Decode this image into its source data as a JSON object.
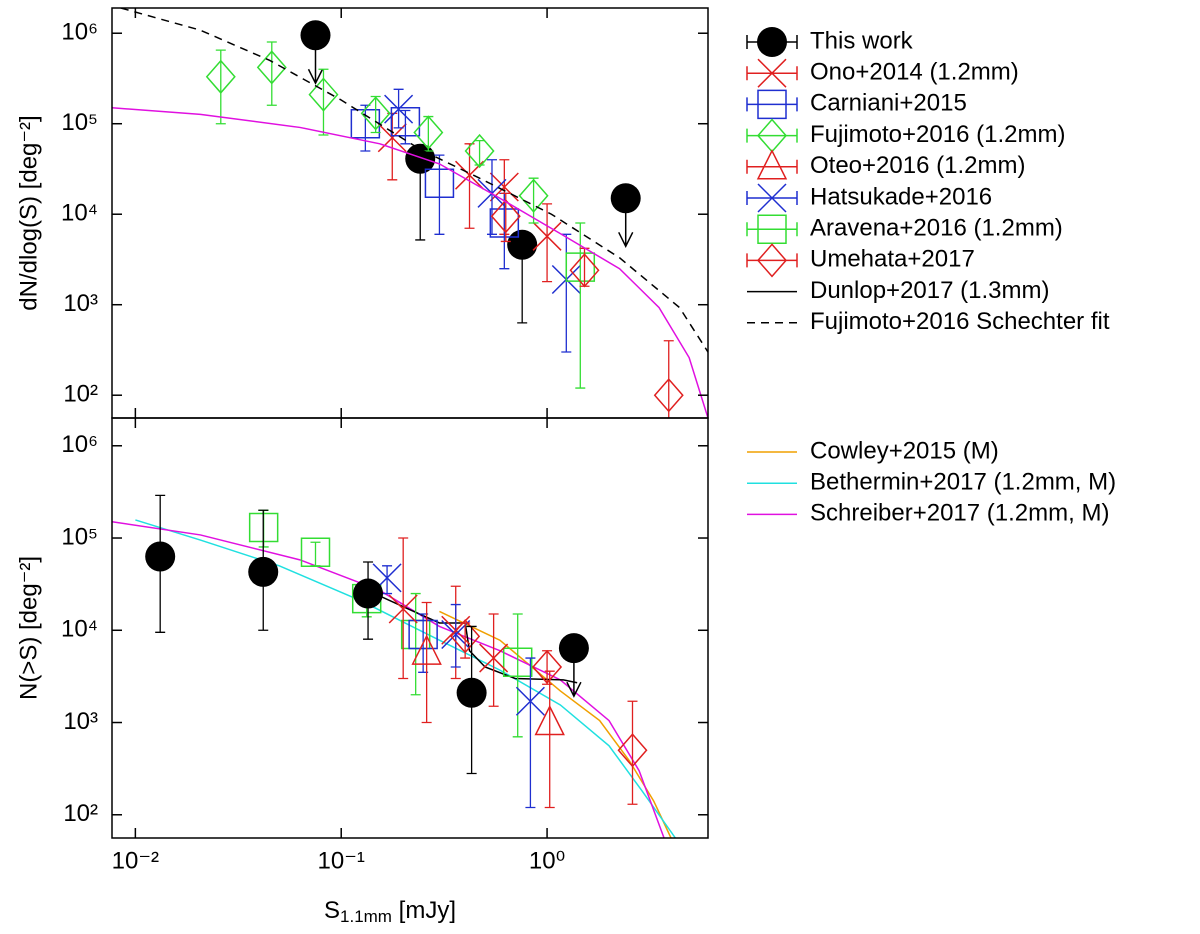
{
  "chart_data": [
    {
      "type": "scatter",
      "xscale": "log",
      "yscale": "log",
      "ylabel": "dN/dlog(S) [deg⁻²]",
      "ylim": [
        56,
        1900000
      ],
      "yticks": [
        {
          "value": 100,
          "label": "10²"
        },
        {
          "value": 1000,
          "label": "10³"
        },
        {
          "value": 10000,
          "label": "10⁴"
        },
        {
          "value": 100000,
          "label": "10⁵"
        },
        {
          "value": 1000000,
          "label": "10⁶"
        }
      ],
      "series": [
        {
          "name": "This work",
          "color": "#000000",
          "marker": "circle",
          "x": [
            0.075,
            0.242,
            0.757,
            2.41
          ],
          "values": [
            950000,
            41000,
            4600,
            15000
          ],
          "err_low": [
            null,
            5200,
            630,
            null
          ],
          "err_high": [
            null,
            50000,
            6000,
            null
          ],
          "upper_limits": [
            true,
            false,
            false,
            true
          ]
        },
        {
          "name": "Ono+2014 (1.2mm)",
          "color": "#e02020",
          "marker": "x",
          "x": [
            0.177,
            0.42,
            0.62,
            1.0
          ],
          "values": [
            70000,
            27000,
            20000,
            5700
          ],
          "err_low": [
            24000,
            7000,
            6000,
            1800
          ],
          "err_high": [
            130000,
            60000,
            40000,
            13000
          ]
        },
        {
          "name": "Carniani+2015",
          "color": "#1f2fd0",
          "marker": "square",
          "x": [
            0.131,
            0.205,
            0.3,
            0.62
          ],
          "values": [
            100000,
            105000,
            22000,
            8000
          ],
          "err_low": [
            50000,
            60000,
            6000,
            2500
          ],
          "err_high": [
            160000,
            140000,
            45000,
            17000
          ]
        },
        {
          "name": "Fujimoto+2016 (1.2mm)",
          "color": "#33dd33",
          "marker": "diamond",
          "x": [
            0.026,
            0.046,
            0.082,
            0.147,
            0.265,
            0.47,
            0.86
          ],
          "values": [
            330000,
            420000,
            210000,
            130000,
            80000,
            50000,
            16000
          ],
          "err_low": [
            100000,
            160000,
            75000,
            80000,
            50000,
            35000,
            8000
          ],
          "err_high": [
            650000,
            800000,
            400000,
            200000,
            120000,
            65000,
            25000
          ]
        },
        {
          "name": "Oteo+2016 (1.2mm)",
          "color": "#e02020",
          "marker": "triangle",
          "x": [],
          "values": [],
          "err_low": [],
          "err_high": []
        },
        {
          "name": "Hatsukade+2016",
          "color": "#1f2fd0",
          "marker": "x",
          "x": [
            0.19,
            0.54,
            1.24
          ],
          "values": [
            145000,
            17000,
            1900
          ],
          "err_low": [
            90000,
            6000,
            300
          ],
          "err_high": [
            240000,
            40000,
            6000
          ]
        },
        {
          "name": "Aravena+2016 (1.2mm)",
          "color": "#33dd33",
          "marker": "square",
          "x": [
            1.45
          ],
          "values": [
            2600
          ],
          "err_low": [
            120
          ],
          "err_high": [
            8000
          ]
        },
        {
          "name": "Umehata+2017",
          "color": "#e02020",
          "marker": "diamond",
          "x": [
            0.63,
            1.52,
            3.9
          ],
          "values": [
            9500,
            2400,
            100
          ],
          "err_low": [
            5000,
            1600,
            35
          ],
          "err_high": [
            17000,
            4200,
            400
          ]
        },
        {
          "name": "Dunlop+2017 (1.3mm)",
          "color": "#000000",
          "line": "solid",
          "x": [],
          "values": []
        },
        {
          "name": "Fujimoto+2016 Schechter fit",
          "color": "#000000",
          "line": "dashed",
          "x": [
            0.0085,
            0.0207,
            0.045,
            0.099,
            0.242,
            0.47,
            1.05,
            2.25,
            4.4,
            6.05
          ],
          "values": [
            1900000,
            1080000,
            500000,
            185000,
            52000,
            25000,
            10000,
            3300,
            930,
            300
          ]
        },
        {
          "color": "#e010e0",
          "line": "solid",
          "x": [
            0.0077,
            0.0207,
            0.063,
            0.154,
            0.3,
            0.59,
            1.16,
            2.25,
            3.5,
            4.9,
            6.05
          ],
          "values": [
            150000,
            127000,
            91000,
            60000,
            36000,
            15000,
            6100,
            2500,
            930,
            260,
            56
          ]
        }
      ]
    },
    {
      "type": "scatter",
      "xscale": "log",
      "yscale": "log",
      "xlabel": {
        "base": "S",
        "sub": "1.1mm",
        "rest": " [mJy]"
      },
      "ylabel": "N(>S) [deg⁻²]",
      "xlim": [
        0.0077,
        6.05
      ],
      "xticks": [
        {
          "value": 0.01,
          "label": "10⁻²"
        },
        {
          "value": 0.1,
          "label": "10⁻¹"
        },
        {
          "value": 1,
          "label": "10⁰"
        }
      ],
      "ylim": [
        56,
        2000000
      ],
      "yticks": [
        {
          "value": 100,
          "label": "10²"
        },
        {
          "value": 1000,
          "label": "10³"
        },
        {
          "value": 10000,
          "label": "10⁴"
        },
        {
          "value": 100000,
          "label": "10⁵"
        },
        {
          "value": 1000000,
          "label": "10⁶"
        }
      ],
      "series": [
        {
          "name": "Cowley+2015 (M)",
          "color": "#f0a000",
          "line": "solid",
          "x": [
            0.3,
            0.59,
            1.16,
            1.8,
            2.5,
            3.3,
            4.0
          ],
          "values": [
            16000,
            7800,
            2200,
            1050,
            390,
            140,
            56
          ]
        },
        {
          "name": "Bethermin+2017 (1.2mm, M)",
          "color": "#20e0e0",
          "line": "solid",
          "x": [
            0.01,
            0.0207,
            0.05,
            0.124,
            0.3,
            0.59,
            1.16,
            2.0,
            2.9,
            4.2
          ],
          "values": [
            157000,
            95000,
            50000,
            21000,
            7800,
            3700,
            1550,
            560,
            180,
            56
          ]
        },
        {
          "name": "Schreiber+2017 (1.2mm, M)",
          "color": "#e010e0",
          "line": "solid",
          "x": [
            0.0077,
            0.0207,
            0.063,
            0.154,
            0.3,
            0.59,
            1.16,
            2.0,
            2.8,
            3.7
          ],
          "values": [
            150000,
            108000,
            58000,
            27000,
            11000,
            6000,
            2900,
            1050,
            300,
            56
          ]
        },
        {
          "color": "#000000",
          "line": "solid",
          "x": [
            0.13,
            0.2,
            0.3,
            0.4,
            0.42,
            0.5,
            0.7,
            1.2,
            1.4
          ],
          "values": [
            28000,
            18000,
            12000,
            12000,
            6000,
            4000,
            3000,
            2900,
            2700
          ]
        },
        {
          "color": "#33dd33",
          "marker": "square",
          "x": [
            0.042,
            0.075,
            0.133,
            0.23,
            0.72
          ],
          "values": [
            130000,
            70000,
            22000,
            9000,
            4500
          ],
          "err_low": [
            80000,
            50000,
            14000,
            2000,
            700
          ],
          "err_high": [
            200000,
            90000,
            30000,
            25000,
            15000
          ]
        },
        {
          "color": "#1f2fd0",
          "marker": "square",
          "x": [
            0.25
          ],
          "values": [
            9000
          ],
          "err_low": [
            3500
          ],
          "err_high": [
            15000
          ]
        },
        {
          "color": "#e02020",
          "marker": "x",
          "x": [
            0.2,
            0.36,
            0.55
          ],
          "values": [
            17000,
            10000,
            5000
          ],
          "err_low": [
            3000,
            3000,
            1500
          ],
          "err_high": [
            100000,
            30000,
            15000
          ]
        },
        {
          "color": "#e02020",
          "marker": "triangle",
          "x": [
            0.26,
            1.03
          ],
          "values": [
            5800,
            1000
          ],
          "err_low": [
            1000,
            120
          ],
          "err_high": [
            20000,
            3600
          ]
        },
        {
          "color": "#1f2fd0",
          "marker": "x",
          "x": [
            0.167,
            0.36,
            0.83
          ],
          "values": [
            37000,
            9000,
            1700
          ],
          "err_low": [
            25000,
            4000,
            120
          ],
          "err_high": [
            50000,
            19000,
            5000
          ]
        },
        {
          "color": "#e02020",
          "marker": "diamond",
          "x": [
            0.4,
            1.0,
            2.6
          ],
          "values": [
            8600,
            4000,
            500
          ],
          "err_low": [
            5000,
            2600,
            130
          ],
          "err_high": [
            12000,
            6000,
            1700
          ]
        },
        {
          "color": "#000000",
          "marker": "circle",
          "x": [
            0.0132,
            0.0418,
            0.135,
            0.43,
            1.35
          ],
          "values": [
            63000,
            43000,
            25000,
            2100,
            6400
          ],
          "err_low": [
            9500,
            10000,
            8000,
            280,
            null
          ],
          "err_high": [
            290000,
            200000,
            55000,
            11000,
            null
          ],
          "upper_limits": [
            false,
            false,
            false,
            false,
            true
          ]
        }
      ]
    }
  ]
}
